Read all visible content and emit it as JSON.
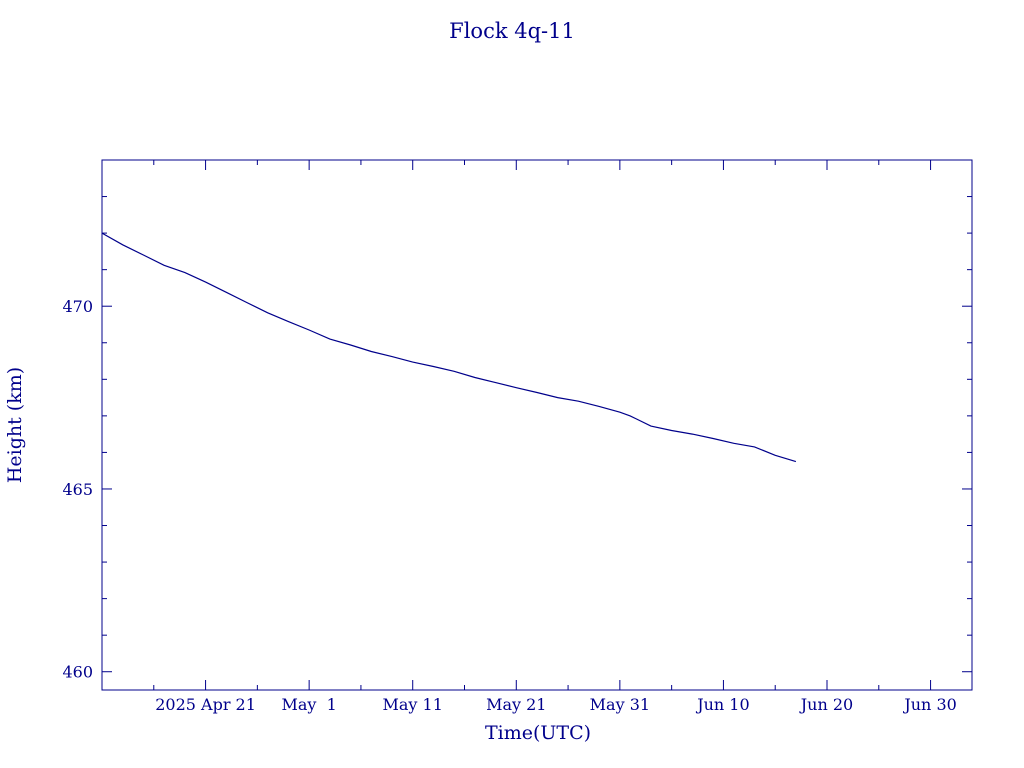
{
  "chart_data": {
    "type": "line",
    "title": "Flock 4q-11",
    "xlabel": "Time(UTC)",
    "ylabel": "Height (km)",
    "xlim": [
      "2025-04-11",
      "2025-07-04"
    ],
    "ylim": [
      459.5,
      474
    ],
    "grid": false,
    "colors": {
      "axis": "#00008b",
      "line": "#00008b",
      "background": "#ffffff"
    },
    "x_ticks": [
      {
        "date": "2025-04-21",
        "label": "2025 Apr 21"
      },
      {
        "date": "2025-05-01",
        "label": "May  1"
      },
      {
        "date": "2025-05-11",
        "label": "May 11"
      },
      {
        "date": "2025-05-21",
        "label": "May 21"
      },
      {
        "date": "2025-05-31",
        "label": "May 31"
      },
      {
        "date": "2025-06-10",
        "label": "Jun 10"
      },
      {
        "date": "2025-06-20",
        "label": "Jun 20"
      },
      {
        "date": "2025-06-30",
        "label": "Jun 30"
      }
    ],
    "y_ticks": [
      {
        "value": 460,
        "label": "460"
      },
      {
        "value": 465,
        "label": "465"
      },
      {
        "value": 470,
        "label": "470"
      }
    ],
    "series": [
      {
        "x": [
          "2025-04-11",
          "2025-04-13",
          "2025-04-15",
          "2025-04-17",
          "2025-04-19",
          "2025-04-21",
          "2025-04-23",
          "2025-04-25",
          "2025-04-27",
          "2025-04-29",
          "2025-05-01",
          "2025-05-03",
          "2025-05-05",
          "2025-05-07",
          "2025-05-09",
          "2025-05-11",
          "2025-05-13",
          "2025-05-15",
          "2025-05-17",
          "2025-05-19",
          "2025-05-21",
          "2025-05-23",
          "2025-05-25",
          "2025-05-27",
          "2025-05-29",
          "2025-05-31",
          "2025-06-01",
          "2025-06-03",
          "2025-06-05",
          "2025-06-07",
          "2025-06-09",
          "2025-06-11",
          "2025-06-13",
          "2025-06-15",
          "2025-06-17"
        ],
        "y": [
          472.0,
          471.68,
          471.4,
          471.12,
          470.92,
          470.66,
          470.38,
          470.1,
          469.82,
          469.58,
          469.35,
          469.1,
          468.94,
          468.76,
          468.62,
          468.47,
          468.35,
          468.22,
          468.05,
          467.91,
          467.77,
          467.64,
          467.5,
          467.4,
          467.26,
          467.1,
          467.0,
          466.72,
          466.6,
          466.5,
          466.38,
          466.25,
          466.15,
          465.92,
          465.75
        ]
      }
    ]
  }
}
